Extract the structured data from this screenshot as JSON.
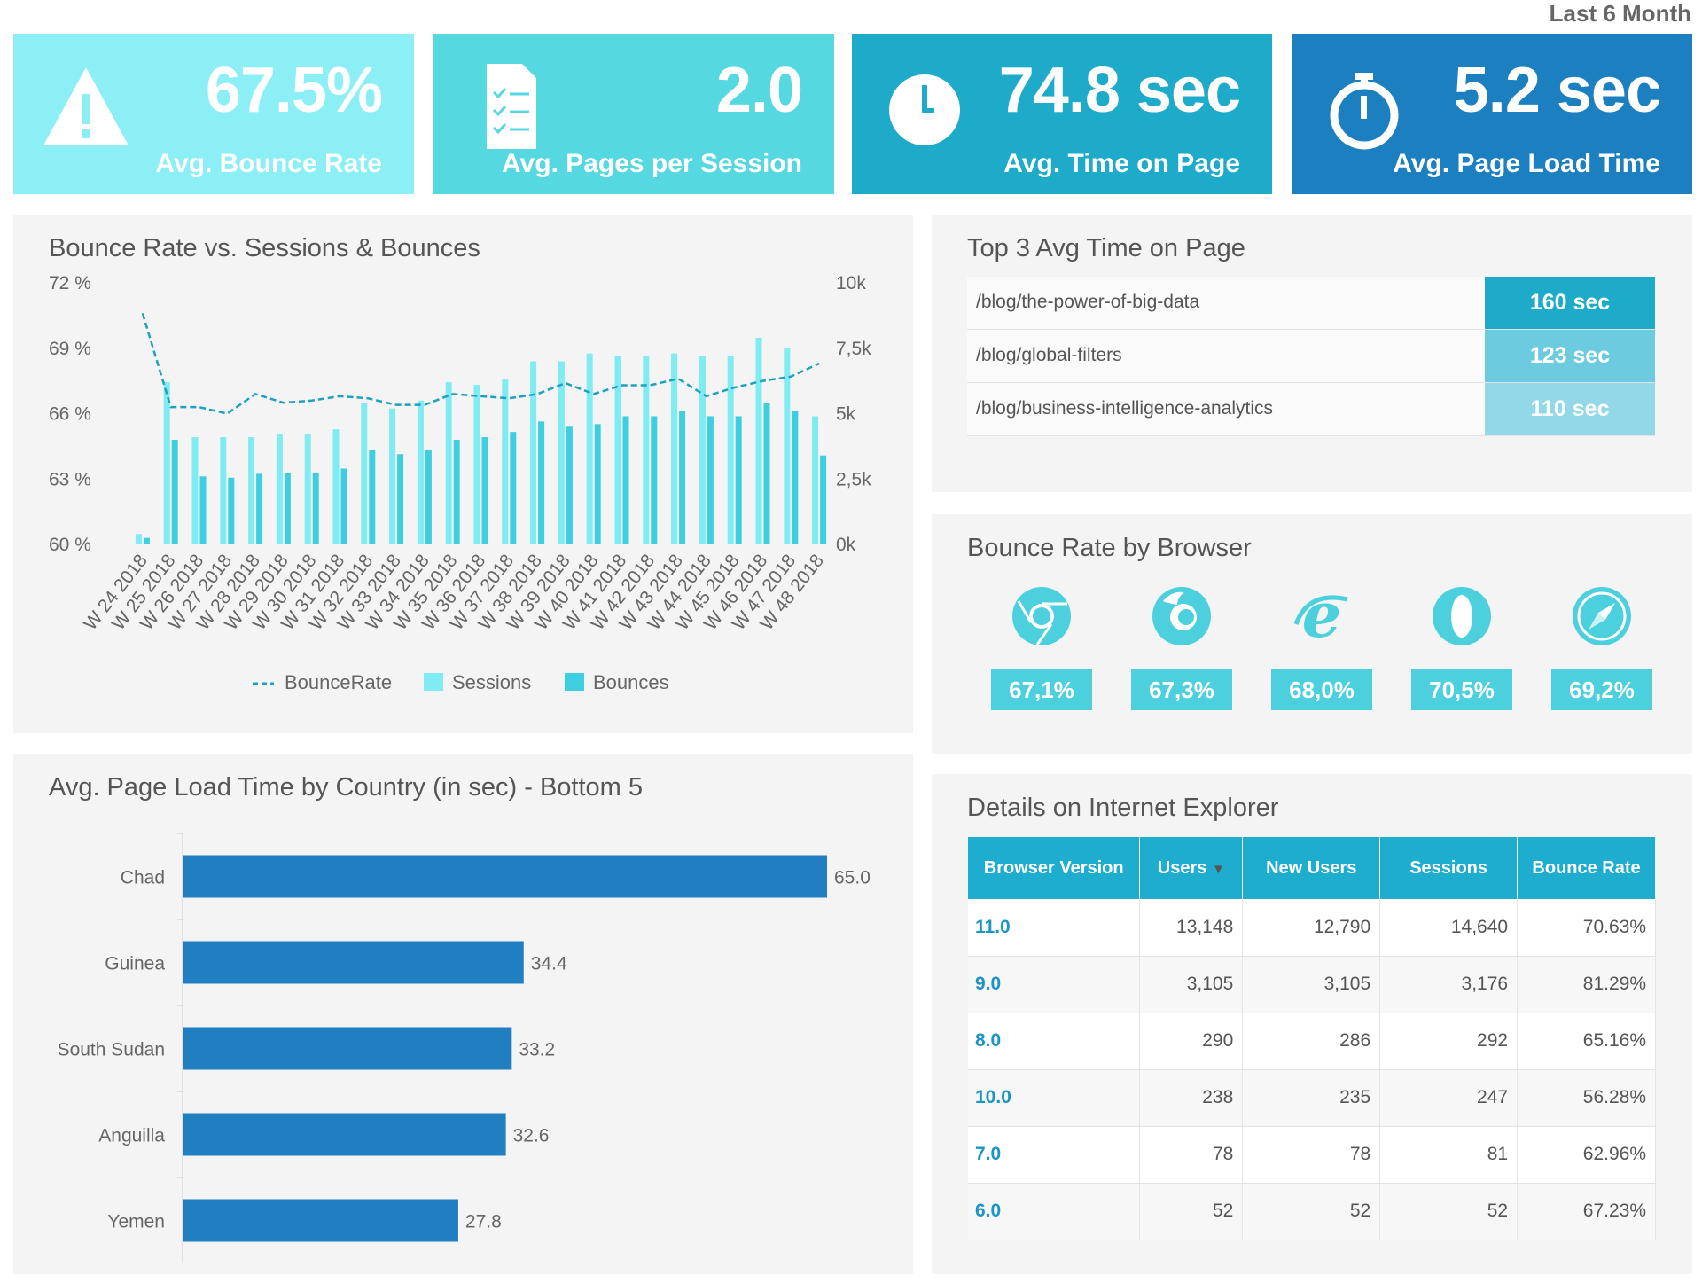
{
  "period": "Last 6 Month",
  "kpis": [
    {
      "value": "67.5%",
      "label": "Avg. Bounce Rate",
      "icon": "warning-icon",
      "color": "#8ceff5"
    },
    {
      "value": "2.0",
      "label": "Avg. Pages per Session",
      "icon": "document-checklist-icon",
      "color": "#55d8e0"
    },
    {
      "value": "74.8 sec",
      "label": "Avg. Time on Page",
      "icon": "clock-icon",
      "color": "#1eaac9"
    },
    {
      "value": "5.2 sec",
      "label": "Avg. Page Load Time",
      "icon": "stopwatch-icon",
      "color": "#1b7fc0"
    }
  ],
  "bounce_chart": {
    "title": "Bounce Rate vs. Sessions & Bounces"
  },
  "top3": {
    "title": "Top 3 Avg Time on Page",
    "rows": [
      {
        "path": "/blog/the-power-of-big-data",
        "time": "160 sec",
        "color": "#1eaac9"
      },
      {
        "path": "/blog/global-filters",
        "time": "123 sec",
        "color": "#6dcbe0"
      },
      {
        "path": "/blog/business-intelligence-analytics",
        "time": "110 sec",
        "color": "#93d8e8"
      }
    ]
  },
  "browsers": {
    "title": "Bounce Rate by Browser",
    "items": [
      {
        "name": "chrome-icon",
        "value": "67,1%"
      },
      {
        "name": "firefox-icon",
        "value": "67,3%"
      },
      {
        "name": "internet-explorer-icon",
        "value": "68,0%"
      },
      {
        "name": "opera-icon",
        "value": "70,5%"
      },
      {
        "name": "safari-icon",
        "value": "69,2%"
      }
    ]
  },
  "load_chart": {
    "title": "Avg. Page Load Time by Country (in sec) - Bottom 5"
  },
  "ie_details": {
    "title": "Details on Internet Explorer",
    "headers": [
      "Browser Version",
      "Users",
      "New Users",
      "Sessions",
      "Bounce Rate"
    ],
    "sort_indicator": "▼",
    "rows": [
      [
        "11.0",
        "13,148",
        "12,790",
        "14,640",
        "70.63%"
      ],
      [
        "9.0",
        "3,105",
        "3,105",
        "3,176",
        "81.29%"
      ],
      [
        "8.0",
        "290",
        "286",
        "292",
        "65.16%"
      ],
      [
        "10.0",
        "238",
        "235",
        "247",
        "56.28%"
      ],
      [
        "7.0",
        "78",
        "78",
        "81",
        "62.96%"
      ],
      [
        "6.0",
        "52",
        "52",
        "52",
        "67.23%"
      ]
    ]
  },
  "chart_data": [
    {
      "type": "bar+line",
      "title": "Bounce Rate vs. Sessions & Bounces",
      "categories": [
        "W 24 2018",
        "W 25 2018",
        "W 26 2018",
        "W 27 2018",
        "W 28 2018",
        "W 29 2018",
        "W 30 2018",
        "W 31 2018",
        "W 32 2018",
        "W 33 2018",
        "W 34 2018",
        "W 35 2018",
        "W 36 2018",
        "W 37 2018",
        "W 38 2018",
        "W 39 2018",
        "W 40 2018",
        "W 41 2018",
        "W 42 2018",
        "W 43 2018",
        "W 44 2018",
        "W 45 2018",
        "W 46 2018",
        "W 47 2018",
        "W 48 2018"
      ],
      "series": [
        {
          "name": "BounceRate",
          "kind": "line",
          "axis": "left",
          "color": "#1ea0bf",
          "values": [
            70.6,
            66.3,
            66.3,
            66.0,
            66.9,
            66.5,
            66.6,
            66.8,
            66.7,
            66.4,
            66.4,
            66.9,
            66.8,
            66.7,
            66.9,
            67.4,
            66.9,
            67.3,
            67.3,
            67.6,
            66.8,
            67.2,
            67.5,
            67.7,
            68.3
          ]
        },
        {
          "name": "Sessions",
          "kind": "bar",
          "axis": "right",
          "color": "#7fecf3",
          "values": [
            400,
            6200,
            4100,
            4100,
            4100,
            4200,
            4200,
            4400,
            5400,
            5200,
            5500,
            6200,
            6100,
            6300,
            7000,
            7000,
            7300,
            7200,
            7200,
            7300,
            7200,
            7200,
            7900,
            7500,
            4900
          ]
        },
        {
          "name": "Bounces",
          "kind": "bar",
          "axis": "right",
          "color": "#3dcfe0",
          "values": [
            250,
            4000,
            2600,
            2550,
            2700,
            2750,
            2750,
            2900,
            3600,
            3450,
            3600,
            4000,
            4100,
            4300,
            4700,
            4500,
            4600,
            4900,
            4900,
            5100,
            4900,
            4900,
            5400,
            5100,
            3400
          ]
        }
      ],
      "y_left": {
        "ticks": [
          "72 %",
          "69 %",
          "66 %",
          "63 %",
          "60 %"
        ],
        "range": [
          60,
          72
        ]
      },
      "y_right": {
        "ticks": [
          "10k",
          "7,5k",
          "5k",
          "2,5k",
          "0k"
        ],
        "range": [
          0,
          10000
        ]
      },
      "legend": [
        "BounceRate",
        "Sessions",
        "Bounces"
      ]
    },
    {
      "type": "bar",
      "orientation": "horizontal",
      "title": "Avg. Page Load Time by Country (in sec) - Bottom 5",
      "categories": [
        "Chad",
        "Guinea",
        "South Sudan",
        "Anguilla",
        "Yemen"
      ],
      "values": [
        65.0,
        34.4,
        33.2,
        32.6,
        27.8
      ],
      "labels": [
        "65.0",
        "34.4",
        "33.2",
        "32.6",
        "27.8"
      ],
      "color": "#1f7fc1",
      "xlim": [
        0,
        65
      ]
    }
  ]
}
